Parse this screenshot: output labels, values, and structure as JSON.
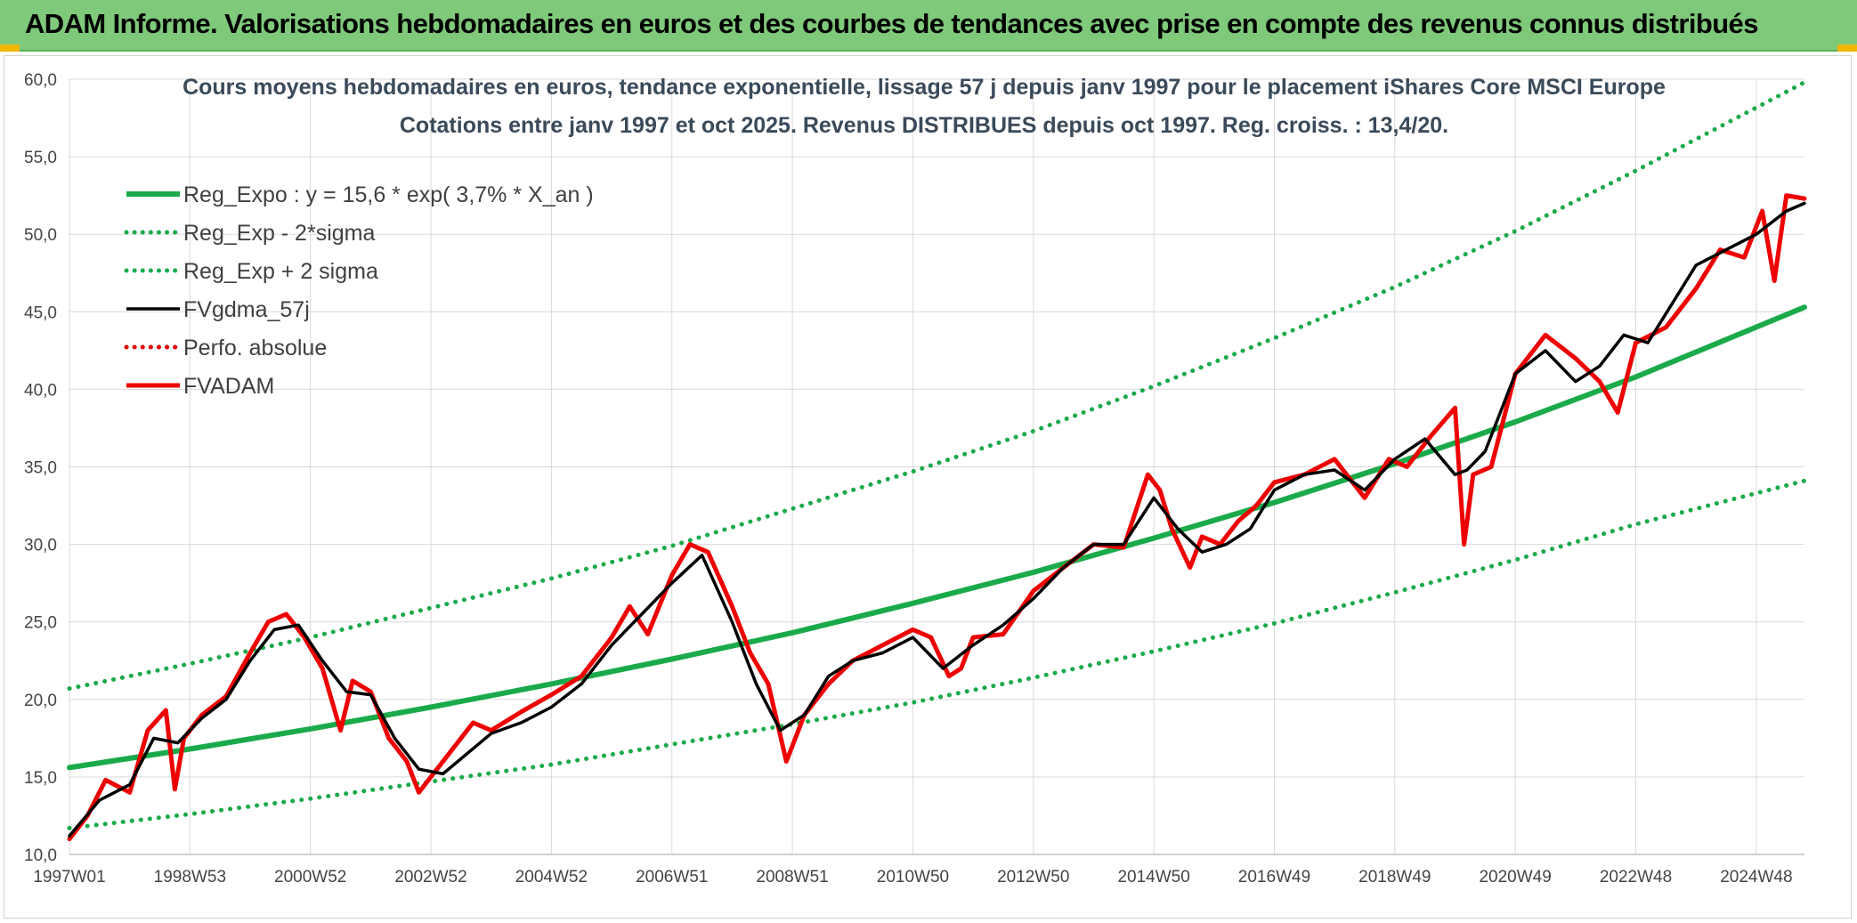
{
  "header": {
    "title": "ADAM Informe. Valorisations hebdomadaires en euros et des courbes de tendances avec prise en compte des revenus connus distribués"
  },
  "chart_data": {
    "type": "line",
    "title": "Cours moyens hebdomadaires en euros, tendance exponentielle, lissage 57 j depuis janv 1997 pour le placement iShares Core MSCI Europe",
    "subtitle": "Cotations entre janv 1997 et oct 2025. Revenus DISTRIBUES depuis oct 1997. Reg. croiss. : 13,4/20.",
    "xlabel": "",
    "ylabel": "",
    "xlim": [
      1997.0,
      2025.8
    ],
    "ylim": [
      10,
      60
    ],
    "y_ticks": [
      "10,0",
      "15,0",
      "20,0",
      "25,0",
      "30,0",
      "35,0",
      "40,0",
      "45,0",
      "50,0",
      "55,0",
      "60,0"
    ],
    "x_ticks": [
      {
        "label": "1997W01",
        "x": 1997.0
      },
      {
        "label": "1998W53",
        "x": 1999.0
      },
      {
        "label": "2000W52",
        "x": 2001.0
      },
      {
        "label": "2002W52",
        "x": 2003.0
      },
      {
        "label": "2004W52",
        "x": 2005.0
      },
      {
        "label": "2006W51",
        "x": 2007.0
      },
      {
        "label": "2008W51",
        "x": 2009.0
      },
      {
        "label": "2010W50",
        "x": 2011.0
      },
      {
        "label": "2012W50",
        "x": 2013.0
      },
      {
        "label": "2014W50",
        "x": 2015.0
      },
      {
        "label": "2016W49",
        "x": 2017.0
      },
      {
        "label": "2018W49",
        "x": 2019.0
      },
      {
        "label": "2020W49",
        "x": 2021.0
      },
      {
        "label": "2022W48",
        "x": 2023.0
      },
      {
        "label": "2024W48",
        "x": 2025.0
      }
    ],
    "grid": true,
    "legend_position": "top-left",
    "series": [
      {
        "name": "Reg_Expo : y = 15,6 * exp( 3,7% *  X_an )",
        "color": "#1aaa4a",
        "style": "solid-thick",
        "x": [
          1997.0,
          1999.0,
          2001.0,
          2003.0,
          2005.0,
          2007.0,
          2009.0,
          2011.0,
          2013.0,
          2015.0,
          2017.0,
          2019.0,
          2021.0,
          2023.0,
          2025.8
        ],
        "y": [
          15.6,
          16.8,
          18.1,
          19.5,
          21.0,
          22.6,
          24.3,
          26.2,
          28.2,
          30.4,
          32.7,
          35.2,
          37.9,
          40.8,
          45.3
        ]
      },
      {
        "name": "Reg_Exp - 2*sigma",
        "color": "#1aaa4a",
        "style": "dotted",
        "x": [
          1997.0,
          1999.0,
          2001.0,
          2003.0,
          2005.0,
          2007.0,
          2009.0,
          2011.0,
          2013.0,
          2015.0,
          2017.0,
          2019.0,
          2021.0,
          2023.0,
          2025.8
        ],
        "y": [
          11.7,
          12.6,
          13.6,
          14.7,
          15.8,
          17.1,
          18.4,
          19.8,
          21.4,
          23.1,
          24.9,
          26.9,
          29.0,
          31.3,
          34.1
        ]
      },
      {
        "name": "Reg_Exp + 2 sigma",
        "color": "#1aaa4a",
        "style": "dotted",
        "x": [
          1997.0,
          1999.0,
          2001.0,
          2003.0,
          2005.0,
          2007.0,
          2009.0,
          2011.0,
          2013.0,
          2015.0,
          2017.0,
          2019.0,
          2021.0,
          2023.0,
          2025.8
        ],
        "y": [
          20.7,
          22.3,
          24.0,
          25.9,
          27.8,
          29.9,
          32.3,
          34.7,
          37.3,
          40.2,
          43.3,
          46.6,
          50.2,
          54.1,
          59.8
        ]
      },
      {
        "name": "FVgdma_57j",
        "color": "#000000",
        "style": "solid",
        "x": [
          1997.0,
          1997.5,
          1998.0,
          1998.4,
          1998.8,
          1999.2,
          1999.6,
          2000.0,
          2000.4,
          2000.8,
          2001.2,
          2001.6,
          2002.0,
          2002.4,
          2002.8,
          2003.2,
          2003.6,
          2004.0,
          2004.5,
          2005.0,
          2005.5,
          2006.0,
          2006.5,
          2007.0,
          2007.5,
          2008.0,
          2008.4,
          2008.8,
          2009.2,
          2009.6,
          2010.0,
          2010.5,
          2011.0,
          2011.5,
          2012.0,
          2012.5,
          2013.0,
          2013.5,
          2014.0,
          2014.5,
          2015.0,
          2015.4,
          2015.8,
          2016.2,
          2016.6,
          2017.0,
          2017.5,
          2018.0,
          2018.5,
          2019.0,
          2019.5,
          2020.0,
          2020.2,
          2020.5,
          2021.0,
          2021.5,
          2022.0,
          2022.4,
          2022.8,
          2023.2,
          2023.6,
          2024.0,
          2024.5,
          2025.0,
          2025.5,
          2025.8
        ],
        "y": [
          11.2,
          13.5,
          14.5,
          17.5,
          17.2,
          18.8,
          20.0,
          22.5,
          24.5,
          24.8,
          22.5,
          20.5,
          20.3,
          17.5,
          15.5,
          15.2,
          16.5,
          17.8,
          18.5,
          19.5,
          21.0,
          23.5,
          25.5,
          27.5,
          29.3,
          25.0,
          21.0,
          18.0,
          19.0,
          21.5,
          22.5,
          23.0,
          24.0,
          22.0,
          23.5,
          24.8,
          26.5,
          28.5,
          30.0,
          30.0,
          33.0,
          31.0,
          29.5,
          30.0,
          31.0,
          33.5,
          34.5,
          34.8,
          33.5,
          35.5,
          36.8,
          34.5,
          34.8,
          36.0,
          41.0,
          42.5,
          40.5,
          41.5,
          43.5,
          43.0,
          45.5,
          48.0,
          49.0,
          50.0,
          51.5,
          52.0
        ]
      },
      {
        "name": "Perfo. absolue",
        "color": "#e00000",
        "style": "dotted",
        "x": [],
        "y": []
      },
      {
        "name": "FVADAM",
        "color": "#ee0000",
        "style": "solid-thick",
        "x": [
          1997.0,
          1997.3,
          1997.6,
          1998.0,
          1998.3,
          1998.6,
          1998.75,
          1998.9,
          1999.2,
          1999.6,
          2000.0,
          2000.3,
          2000.6,
          2000.9,
          2001.2,
          2001.5,
          2001.7,
          2002.0,
          2002.3,
          2002.6,
          2002.8,
          2003.1,
          2003.4,
          2003.7,
          2004.0,
          2004.5,
          2005.0,
          2005.5,
          2006.0,
          2006.3,
          2006.6,
          2007.0,
          2007.3,
          2007.6,
          2008.0,
          2008.3,
          2008.6,
          2008.9,
          2009.2,
          2009.6,
          2010.0,
          2010.5,
          2011.0,
          2011.3,
          2011.6,
          2011.8,
          2012.0,
          2012.5,
          2013.0,
          2013.5,
          2014.0,
          2014.5,
          2014.9,
          2015.1,
          2015.3,
          2015.6,
          2015.8,
          2016.1,
          2016.4,
          2016.7,
          2017.0,
          2017.5,
          2018.0,
          2018.5,
          2018.9,
          2019.2,
          2019.6,
          2020.0,
          2020.15,
          2020.3,
          2020.6,
          2021.0,
          2021.5,
          2022.0,
          2022.4,
          2022.7,
          2023.0,
          2023.5,
          2024.0,
          2024.4,
          2024.8,
          2025.1,
          2025.3,
          2025.5,
          2025.8
        ],
        "y": [
          11.0,
          12.5,
          14.8,
          14.0,
          18.0,
          19.3,
          14.2,
          17.5,
          19.0,
          20.2,
          23.0,
          25.0,
          25.5,
          24.0,
          22.0,
          18.0,
          21.2,
          20.5,
          17.5,
          16.0,
          14.0,
          15.5,
          17.0,
          18.5,
          18.0,
          19.2,
          20.3,
          21.5,
          24.0,
          26.0,
          24.2,
          28.0,
          30.0,
          29.5,
          26.0,
          23.0,
          21.0,
          16.0,
          19.0,
          21.0,
          22.5,
          23.5,
          24.5,
          24.0,
          21.5,
          22.0,
          24.0,
          24.2,
          27.0,
          28.5,
          30.0,
          29.8,
          34.5,
          33.5,
          31.0,
          28.5,
          30.5,
          30.0,
          31.5,
          32.5,
          34.0,
          34.5,
          35.5,
          33.0,
          35.5,
          35.0,
          37.0,
          38.8,
          30.0,
          34.5,
          35.0,
          41.0,
          43.5,
          42.0,
          40.5,
          38.5,
          43.0,
          44.0,
          46.5,
          49.0,
          48.5,
          51.5,
          47.0,
          52.5,
          52.3
        ]
      }
    ]
  }
}
